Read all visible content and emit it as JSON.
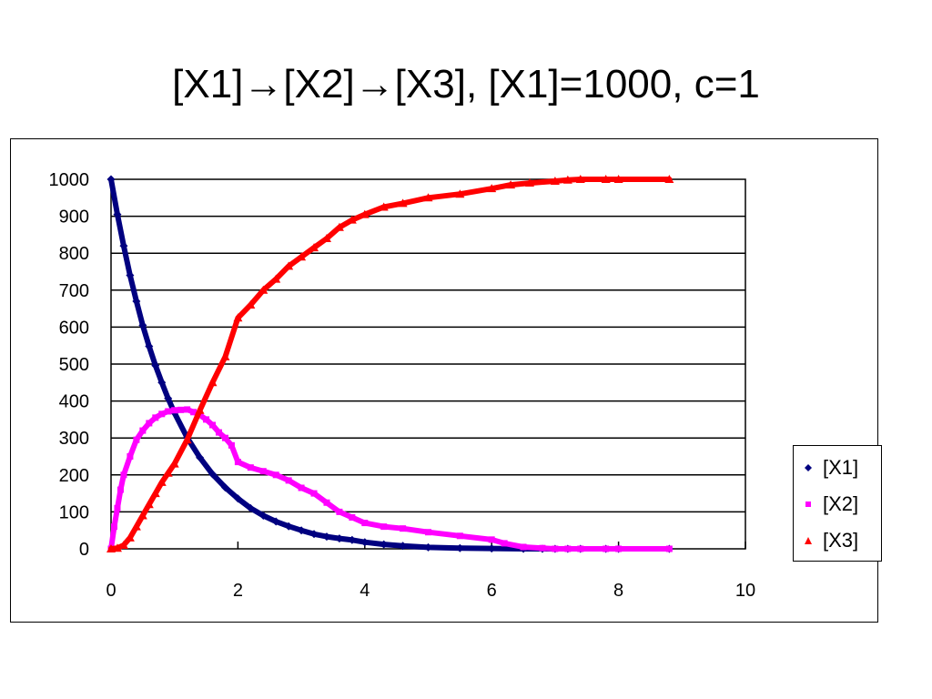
{
  "slide": {
    "title": "[X1]→[X2]→[X3], [X1]=1000, c=1"
  },
  "chart_data": {
    "type": "scatter",
    "title": "",
    "xlabel": "",
    "ylabel": "",
    "xlim": [
      0,
      10
    ],
    "ylim": [
      0,
      1000
    ],
    "x_ticks": [
      "0",
      "2",
      "4",
      "6",
      "8",
      "10"
    ],
    "y_ticks": [
      "0",
      "100",
      "200",
      "300",
      "400",
      "500",
      "600",
      "700",
      "800",
      "900",
      "1000"
    ],
    "grid": "horizontal",
    "legend_position": "right",
    "series": [
      {
        "name": "[X1]",
        "color": "#000080",
        "marker": "diamond",
        "x": [
          0,
          0.1,
          0.2,
          0.3,
          0.4,
          0.5,
          0.6,
          0.7,
          0.8,
          0.9,
          1.0,
          1.2,
          1.4,
          1.6,
          1.8,
          2.0,
          2.2,
          2.4,
          2.6,
          2.8,
          3.0,
          3.2,
          3.4,
          3.6,
          3.8,
          4.0,
          4.3,
          4.6,
          5.0,
          5.5,
          6.0,
          6.5,
          6.8,
          7.0,
          7.2,
          7.4,
          7.8,
          8.0,
          8.8
        ],
        "y": [
          1000,
          905,
          820,
          740,
          670,
          605,
          548,
          496,
          450,
          407,
          368,
          301,
          247,
          202,
          166,
          136,
          110,
          90,
          74,
          61,
          50,
          40,
          33,
          28,
          24,
          18,
          12,
          8,
          4,
          2,
          1,
          0,
          0,
          0,
          0,
          0,
          0,
          0,
          0
        ]
      },
      {
        "name": "[X2]",
        "color": "#ff00ff",
        "marker": "square",
        "x": [
          0,
          0.05,
          0.1,
          0.15,
          0.2,
          0.3,
          0.4,
          0.5,
          0.6,
          0.7,
          0.8,
          0.9,
          1.0,
          1.1,
          1.2,
          1.3,
          1.4,
          1.5,
          1.6,
          1.7,
          1.8,
          1.9,
          2.0,
          2.2,
          2.4,
          2.6,
          2.8,
          3.0,
          3.2,
          3.4,
          3.6,
          3.8,
          4.0,
          4.3,
          4.6,
          5.0,
          5.5,
          6.0,
          6.2,
          6.5,
          6.8,
          7.0,
          7.2,
          7.4,
          7.8,
          8.0,
          8.8
        ],
        "y": [
          0,
          60,
          110,
          160,
          200,
          250,
          295,
          320,
          340,
          355,
          365,
          372,
          375,
          376,
          377,
          370,
          362,
          350,
          335,
          315,
          300,
          280,
          235,
          220,
          210,
          200,
          185,
          165,
          150,
          125,
          100,
          85,
          70,
          60,
          55,
          45,
          35,
          25,
          15,
          5,
          2,
          0,
          0,
          0,
          0,
          0,
          0
        ]
      },
      {
        "name": "[X3]",
        "color": "#ff0000",
        "marker": "triangle",
        "x": [
          0,
          0.1,
          0.2,
          0.3,
          0.4,
          0.5,
          0.6,
          0.7,
          0.8,
          0.9,
          1.0,
          1.2,
          1.4,
          1.6,
          1.8,
          2.0,
          2.2,
          2.4,
          2.6,
          2.8,
          3.0,
          3.2,
          3.4,
          3.6,
          3.8,
          4.0,
          4.3,
          4.6,
          5.0,
          5.5,
          6.0,
          6.3,
          6.6,
          7.0,
          7.2,
          7.4,
          7.8,
          8.0,
          8.8
        ],
        "y": [
          0,
          2,
          10,
          30,
          60,
          90,
          120,
          150,
          180,
          205,
          230,
          295,
          375,
          450,
          520,
          625,
          660,
          700,
          730,
          765,
          790,
          815,
          840,
          870,
          890,
          905,
          925,
          935,
          950,
          960,
          975,
          985,
          990,
          995,
          998,
          1000,
          1000,
          1000,
          1000
        ]
      }
    ]
  }
}
